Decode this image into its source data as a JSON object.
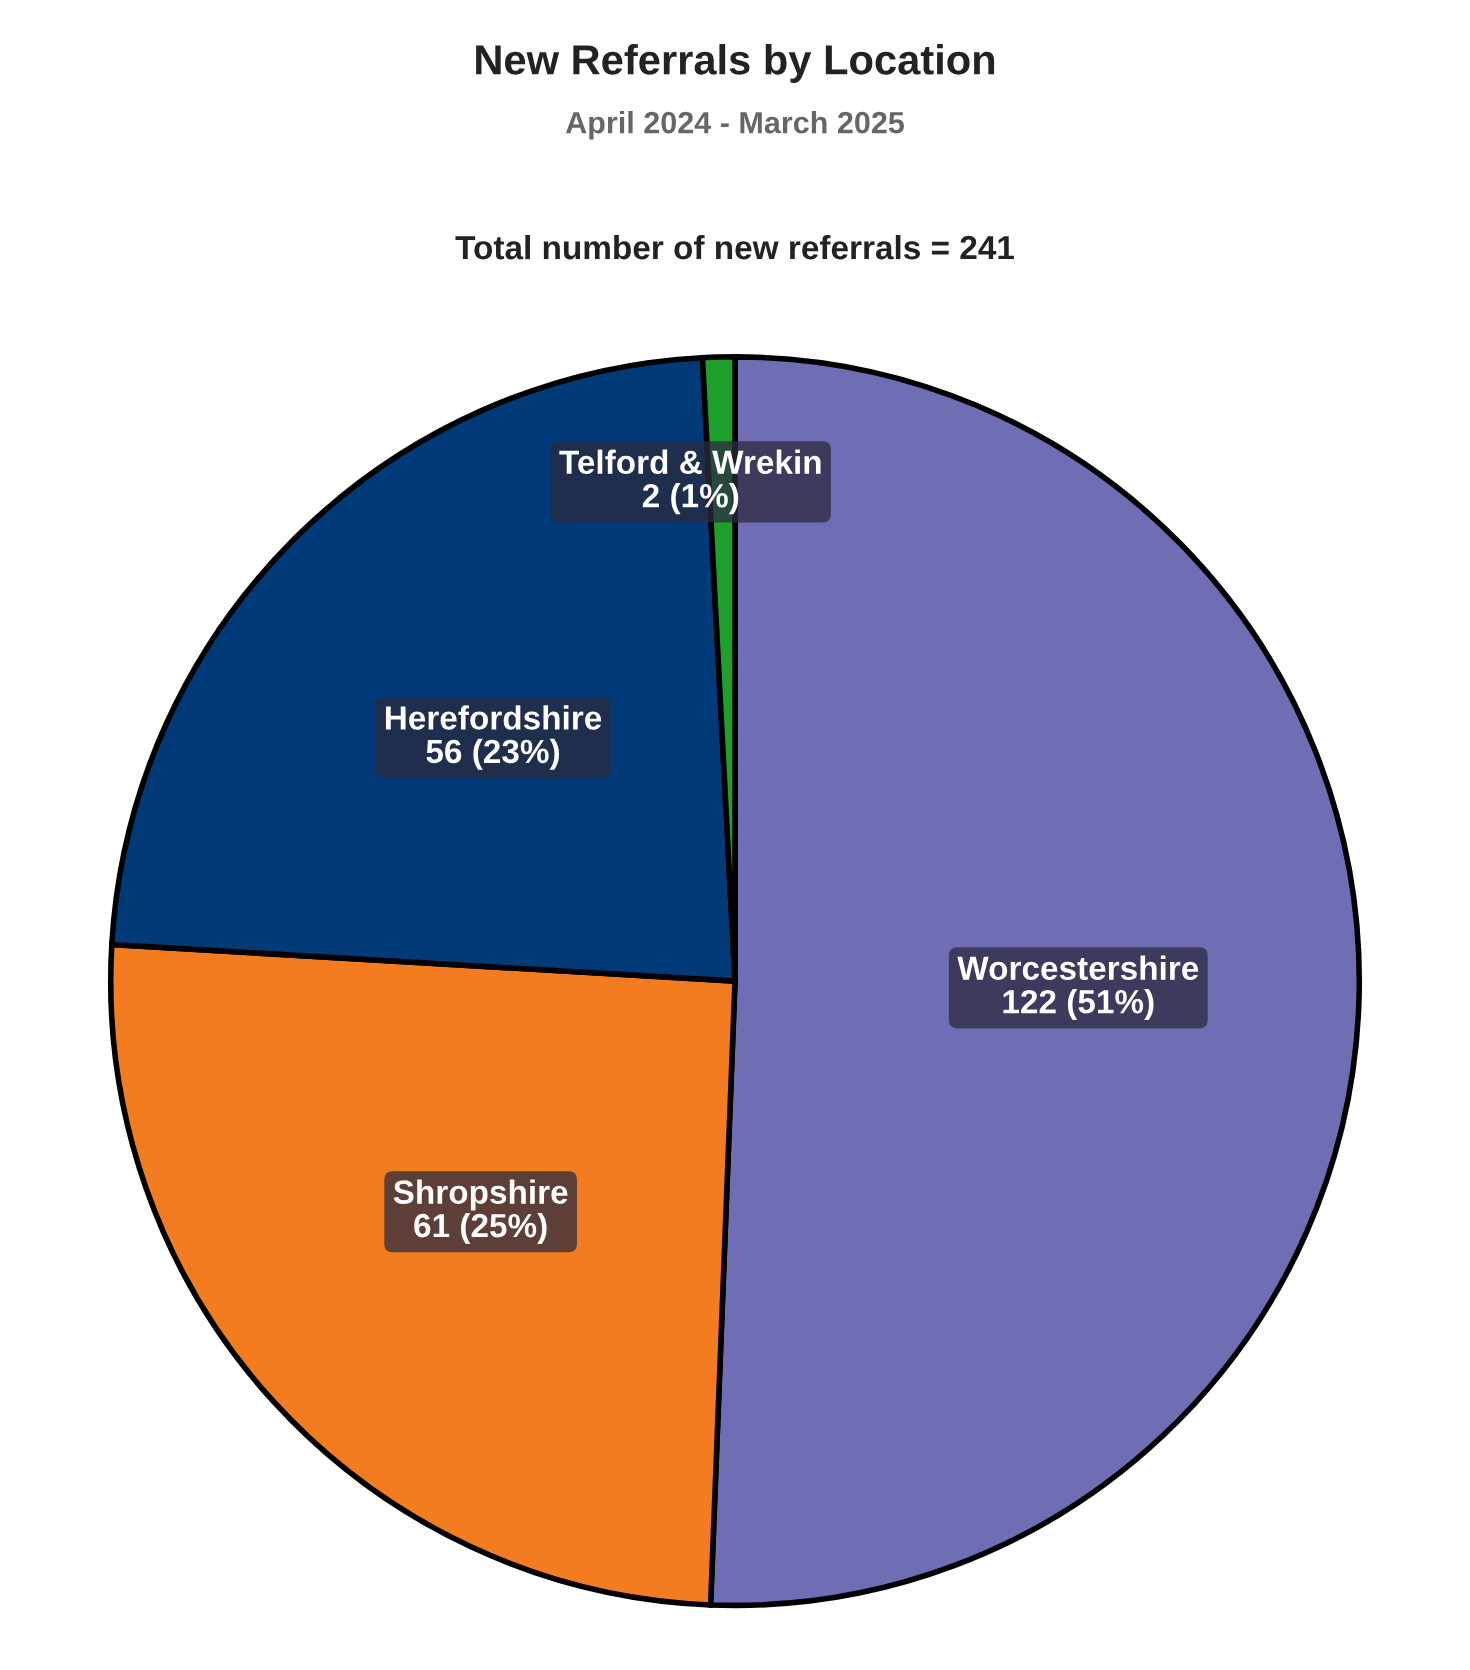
{
  "chart_data": {
    "type": "pie",
    "title": "New Referrals by Location",
    "subtitle": "April 2024 - March 2025",
    "annotations": [
      "Total number of new referrals = 241"
    ],
    "categories": [
      "Worcestershire",
      "Shropshire",
      "Herefordshire",
      "Telford & Wrekin"
    ],
    "values": [
      122,
      61,
      56,
      2
    ],
    "colors": [
      "#6f6db3",
      "#f47c20",
      "#003a78",
      "#1fa02a"
    ],
    "value_labels": [
      "122 (51%)",
      "61 (25%)",
      "56 (23%)",
      "2 (1%)"
    ]
  }
}
